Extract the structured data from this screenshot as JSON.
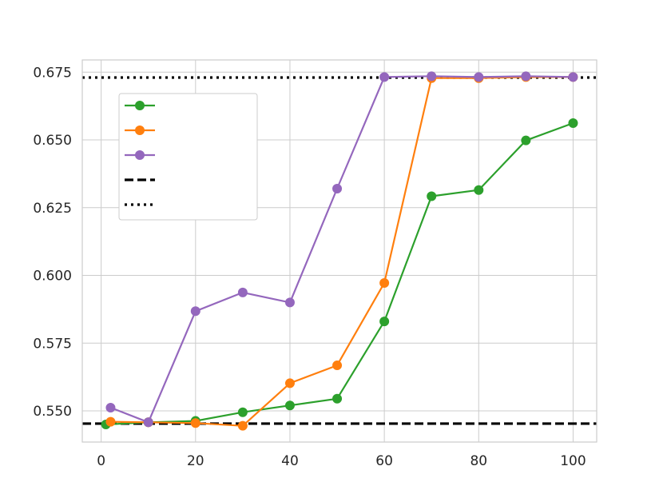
{
  "chart_data": {
    "type": "line",
    "title": "",
    "xlabel": "",
    "ylabel": "",
    "xlim": [
      -4,
      105
    ],
    "ylim": [
      0.5385,
      0.6795
    ],
    "x_ticks": [
      0,
      20,
      40,
      60,
      80,
      100
    ],
    "y_ticks": [
      0.55,
      0.575,
      0.6,
      0.625,
      0.65,
      0.675
    ],
    "x_tick_labels": [
      "0",
      "20",
      "40",
      "60",
      "80",
      "100"
    ],
    "y_tick_labels": [
      "0.550",
      "0.575",
      "0.600",
      "0.625",
      "0.650",
      "0.675"
    ],
    "grid": true,
    "legend_position": "upper-left",
    "series": [
      {
        "color": "#2ca02c",
        "style": "line-marker",
        "x": [
          1,
          10,
          20,
          30,
          40,
          50,
          60,
          70,
          80,
          90,
          100
        ],
        "y": [
          0.545,
          0.5458,
          0.5463,
          0.5495,
          0.552,
          0.5545,
          0.583,
          0.6292,
          0.6315,
          0.6498,
          0.6562
        ]
      },
      {
        "color": "#ff7f0e",
        "style": "line-marker",
        "x": [
          2,
          10,
          20,
          30,
          40,
          50,
          60,
          70,
          80,
          90,
          100
        ],
        "y": [
          0.546,
          0.5458,
          0.5455,
          0.5445,
          0.5602,
          0.5668,
          0.5972,
          0.6728,
          0.6728,
          0.6732,
          0.6732
        ]
      },
      {
        "color": "#9467bd",
        "style": "line-marker",
        "x": [
          2,
          10,
          20,
          30,
          40,
          50,
          60,
          70,
          80,
          90,
          100
        ],
        "y": [
          0.5512,
          0.5458,
          0.5868,
          0.5937,
          0.59,
          0.632,
          0.6732,
          0.6735,
          0.6732,
          0.6735,
          0.6732
        ]
      }
    ],
    "reference_lines": [
      {
        "y": 0.5453,
        "style": "dashed",
        "color": "#000000"
      },
      {
        "y": 0.673,
        "style": "dotted",
        "color": "#000000"
      }
    ],
    "legend_entries": [
      {
        "kind": "line-marker",
        "color": "#2ca02c"
      },
      {
        "kind": "line-marker",
        "color": "#ff7f0e"
      },
      {
        "kind": "line-marker",
        "color": "#9467bd"
      },
      {
        "kind": "dashed",
        "color": "#000000"
      },
      {
        "kind": "dotted",
        "color": "#000000"
      }
    ]
  }
}
